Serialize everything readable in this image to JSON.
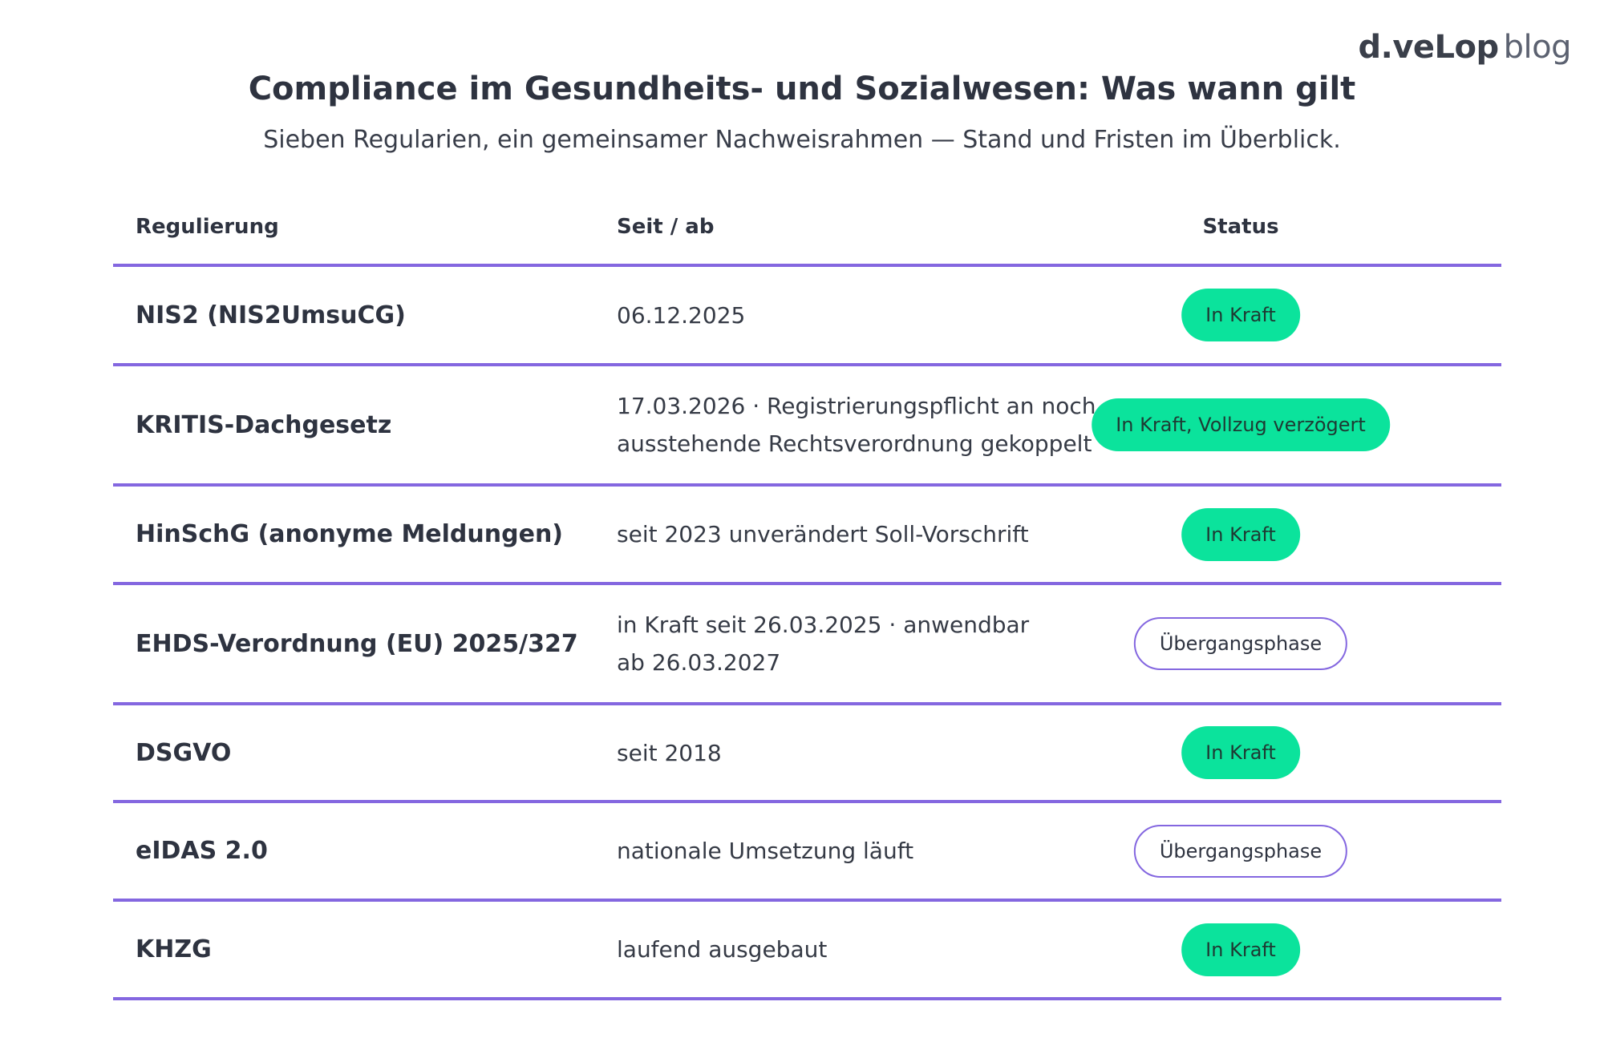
{
  "logo": {
    "brand": "d.veLop",
    "suffix": "blog"
  },
  "title": "Compliance im Gesundheits- und Sozialwesen: Was wann gilt",
  "subtitle": "Sieben Regularien, ein gemeinsamer Nachweisrahmen — Stand und Fristen im Überblick.",
  "table": {
    "headers": {
      "regulation": "Regulierung",
      "since": "Seit / ab",
      "status": "Status"
    },
    "rows": [
      {
        "name": "NIS2 (NIS2UmsuCG)",
        "date_line1": "06.12.2025",
        "date_line2": "",
        "status": "In Kraft",
        "status_type": "active"
      },
      {
        "name": "KRITIS-Dachgesetz",
        "date_line1": "17.03.2026 · Registrierungspflicht an noch",
        "date_line2": "ausstehende Rechtsverordnung gekoppelt",
        "status": "In Kraft, Vollzug verzögert",
        "status_type": "active"
      },
      {
        "name": "HinSchG (anonyme Meldungen)",
        "date_line1": "seit 2023 unverändert Soll-Vorschrift",
        "date_line2": "",
        "status": "In Kraft",
        "status_type": "active"
      },
      {
        "name": "EHDS-Verordnung (EU) 2025/327",
        "date_line1": "in Kraft seit 26.03.2025 · anwendbar",
        "date_line2": "ab 26.03.2027",
        "status": "Übergangsphase",
        "status_type": "transition"
      },
      {
        "name": "DSGVO",
        "date_line1": "seit 2018",
        "date_line2": "",
        "status": "In Kraft",
        "status_type": "active"
      },
      {
        "name": "eIDAS 2.0",
        "date_line1": "nationale Umsetzung läuft",
        "date_line2": "",
        "status": "Übergangsphase",
        "status_type": "transition"
      },
      {
        "name": "KHZG",
        "date_line1": "laufend ausgebaut",
        "date_line2": "",
        "status": "In Kraft",
        "status_type": "active"
      }
    ]
  },
  "colors": {
    "rule": "#8467e0",
    "active_badge": "#0be39c",
    "text": "#2e3340"
  }
}
